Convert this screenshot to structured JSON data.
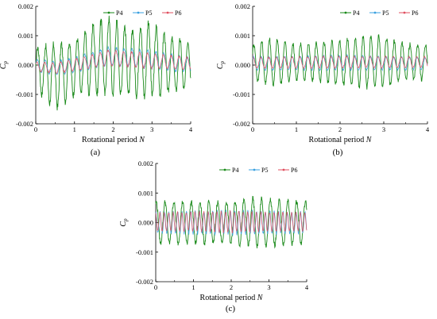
{
  "chart_data": [
    {
      "type": "line",
      "panel_label": "(a)",
      "xlabel": "Rotational period",
      "xlabel_var": "N",
      "ylabel_var": "C",
      "ylabel_sub": "p",
      "xlim": [
        0,
        4
      ],
      "ylim": [
        -0.002,
        0.002
      ],
      "x_ticks": [
        "0",
        "1",
        "2",
        "3",
        "4"
      ],
      "y_ticks": [
        "-0.002",
        "-0.001",
        "0.000",
        "0.001",
        "0.002"
      ],
      "legend": {
        "position": "top-right",
        "entries": [
          "P4",
          "P5",
          "P6"
        ]
      },
      "series": [
        {
          "name": "P4",
          "color": "#1a8a1a",
          "cycles_per_N": 4.9,
          "shape": "rising",
          "amplitude_by_N": [
            [
              0,
              0.0007
            ],
            [
              0.5,
              0.0011
            ],
            [
              1.0,
              0.0009
            ],
            [
              1.5,
              0.0012
            ],
            [
              1.85,
              0.0013
            ],
            [
              2.5,
              0.0011
            ],
            [
              2.9,
              0.0013
            ],
            [
              3.5,
              0.0009
            ],
            [
              4.0,
              0.0008
            ]
          ],
          "mean_by_N": [
            [
              0,
              -0.0001
            ],
            [
              0.5,
              -0.0004
            ],
            [
              1.0,
              -0.0001
            ],
            [
              1.5,
              0.0002
            ],
            [
              1.85,
              0.0003
            ],
            [
              2.5,
              0.0001
            ],
            [
              2.9,
              0.0002
            ],
            [
              3.5,
              0.0
            ],
            [
              4.0,
              0.0
            ]
          ]
        },
        {
          "name": "P5",
          "color": "#3aa0e0",
          "cycles_per_N": 4.9,
          "shape": "rising",
          "amplitude_by_N": [
            [
              0,
              0.0002
            ],
            [
              1.0,
              0.00025
            ],
            [
              1.85,
              0.0003
            ],
            [
              2.9,
              0.0003
            ],
            [
              4.0,
              0.00025
            ]
          ],
          "mean_by_N": [
            [
              0,
              0.0
            ],
            [
              0.5,
              -0.0001
            ],
            [
              1.0,
              0.0
            ],
            [
              1.85,
              0.0003
            ],
            [
              2.9,
              0.0002
            ],
            [
              4.0,
              0.0
            ]
          ]
        },
        {
          "name": "P6",
          "color": "#e05060",
          "cycles_per_N": 4.9,
          "shape": "rising",
          "amplitude_by_N": [
            [
              0,
              0.00015
            ],
            [
              1.0,
              0.0002
            ],
            [
              1.85,
              0.00025
            ],
            [
              2.9,
              0.00025
            ],
            [
              4.0,
              0.0002
            ]
          ],
          "mean_by_N": [
            [
              0,
              -5e-05
            ],
            [
              0.5,
              -0.0001
            ],
            [
              1.0,
              0.0
            ],
            [
              1.85,
              0.00025
            ],
            [
              2.9,
              0.00015
            ],
            [
              4.0,
              5e-05
            ]
          ]
        }
      ]
    },
    {
      "type": "line",
      "panel_label": "(b)",
      "xlabel": "Rotational period",
      "xlabel_var": "N",
      "ylabel_var": "C",
      "ylabel_sub": "p",
      "xlim": [
        0,
        4
      ],
      "ylim": [
        -0.002,
        0.002
      ],
      "x_ticks": [
        "0",
        "1",
        "2",
        "3",
        "4"
      ],
      "y_ticks": [
        "-0.002",
        "-0.001",
        "0.000",
        "0.001",
        "0.002"
      ],
      "legend": {
        "position": "top-right",
        "entries": [
          "P4",
          "P5",
          "P6"
        ]
      },
      "series": [
        {
          "name": "P4",
          "color": "#1a8a1a",
          "cycles_per_N": 5.6,
          "shape": "plain",
          "amplitude_by_N": [
            [
              0,
              0.0006
            ],
            [
              0.4,
              0.0008
            ],
            [
              1.0,
              0.0006
            ],
            [
              1.7,
              0.0007
            ],
            [
              2.9,
              0.0009
            ],
            [
              3.5,
              0.0006
            ],
            [
              4.0,
              0.0006
            ]
          ],
          "mean_by_N": [
            [
              0,
              0.0001
            ],
            [
              2.0,
              0.0001
            ],
            [
              4.0,
              0.0001
            ]
          ]
        },
        {
          "name": "P5",
          "color": "#3aa0e0",
          "cycles_per_N": 5.6,
          "shape": "plain",
          "amplitude_by_N": [
            [
              0,
              0.00022
            ],
            [
              2.0,
              0.00025
            ],
            [
              4.0,
              0.0002
            ]
          ],
          "mean_by_N": [
            [
              0,
              5e-05
            ],
            [
              2.0,
              8e-05
            ],
            [
              4.0,
              5e-05
            ]
          ]
        },
        {
          "name": "P6",
          "color": "#e05060",
          "cycles_per_N": 5.6,
          "shape": "plain",
          "amplitude_by_N": [
            [
              0,
              0.00018
            ],
            [
              2.0,
              0.0002
            ],
            [
              4.0,
              0.00018
            ]
          ],
          "mean_by_N": [
            [
              0,
              8e-05
            ],
            [
              2.0,
              0.0001
            ],
            [
              4.0,
              0.0001
            ]
          ]
        }
      ]
    },
    {
      "type": "line",
      "panel_label": "(c)",
      "xlabel": "Rotational period",
      "xlabel_var": "N",
      "ylabel_var": "C",
      "ylabel_sub": "p",
      "xlim": [
        0,
        4
      ],
      "ylim": [
        -0.002,
        0.002
      ],
      "x_ticks": [
        "0",
        "1",
        "2",
        "3",
        "4"
      ],
      "y_ticks": [
        "-0.002",
        "-0.001",
        "0.000",
        "0.001",
        "0.002"
      ],
      "legend": {
        "position": "top-right",
        "entries": [
          "P4",
          "P5",
          "P6"
        ]
      },
      "series": [
        {
          "name": "P4",
          "color": "#1a8a1a",
          "cycles_per_N": 4.3,
          "shape": "plain",
          "amplitude_by_N": [
            [
              0,
              0.0007
            ],
            [
              1.0,
              0.0007
            ],
            [
              2.0,
              0.0007
            ],
            [
              2.6,
              0.0008
            ],
            [
              4.0,
              0.0007
            ]
          ],
          "mean_by_N": [
            [
              0,
              0.0
            ],
            [
              4.0,
              0.0
            ]
          ]
        },
        {
          "name": "P5",
          "color": "#3aa0e0",
          "cycles_per_N": 8.6,
          "shape": "plain",
          "amplitude_by_N": [
            [
              0,
              0.00035
            ],
            [
              2.0,
              0.0004
            ],
            [
              4.0,
              0.00035
            ]
          ],
          "mean_by_N": [
            [
              0,
              0.0
            ],
            [
              4.0,
              0.0
            ]
          ]
        },
        {
          "name": "P6",
          "color": "#e05060",
          "cycles_per_N": 8.6,
          "shape": "plain",
          "amplitude_by_N": [
            [
              0,
              0.0003
            ],
            [
              2.0,
              0.00035
            ],
            [
              4.0,
              0.0003
            ]
          ],
          "mean_by_N": [
            [
              0,
              3e-05
            ],
            [
              4.0,
              3e-05
            ]
          ]
        }
      ]
    }
  ]
}
